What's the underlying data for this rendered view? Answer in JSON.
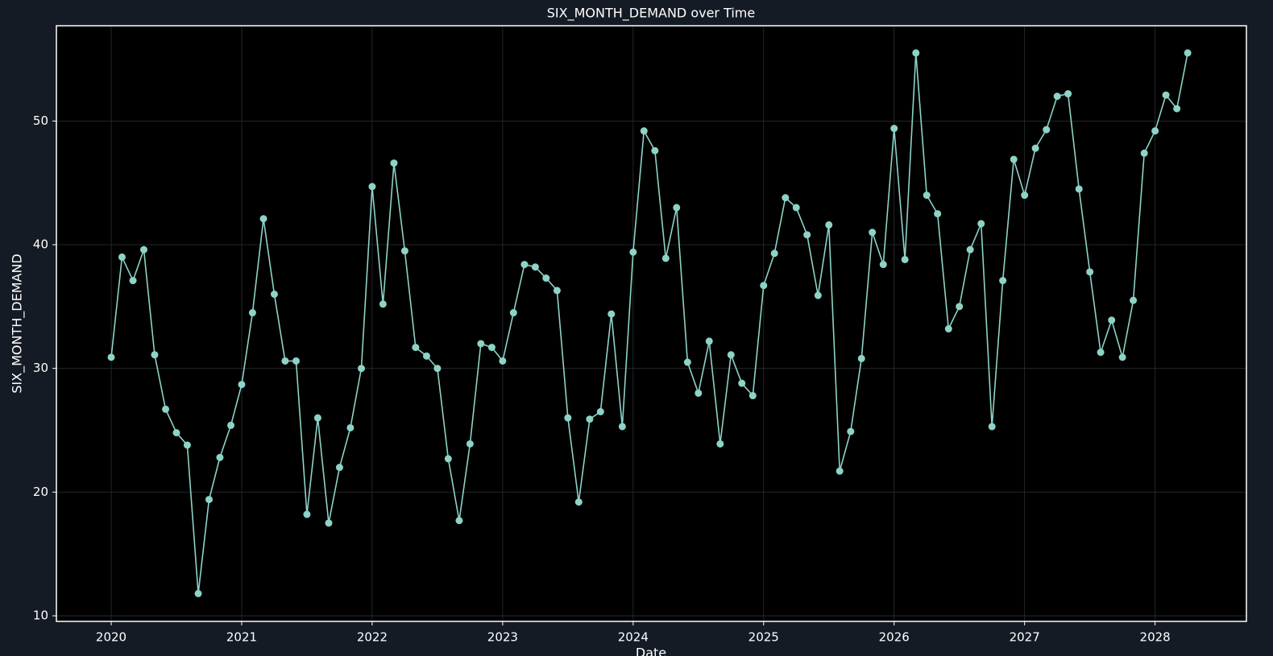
{
  "chart_data": {
    "type": "line",
    "title": "SIX_MONTH_DEMAND over Time",
    "xlabel": "Date",
    "ylabel": "SIX_MONTH_DEMAND",
    "color": "#8dd3c7",
    "grid": true,
    "marker": true,
    "xlim": [
      2019.58,
      2028.7
    ],
    "xticks": [
      2020,
      2021,
      2022,
      2023,
      2024,
      2025,
      2026,
      2027,
      2028
    ],
    "ylim": [
      9.55,
      57.7
    ],
    "yticks": [
      10,
      20,
      30,
      40,
      50
    ],
    "x": [
      2020,
      2020.083,
      2020.167,
      2020.25,
      2020.333,
      2020.417,
      2020.5,
      2020.583,
      2020.667,
      2020.75,
      2020.833,
      2020.917,
      2021,
      2021.083,
      2021.167,
      2021.25,
      2021.333,
      2021.417,
      2021.5,
      2021.583,
      2021.667,
      2021.75,
      2021.833,
      2021.917,
      2022,
      2022.083,
      2022.167,
      2022.25,
      2022.333,
      2022.417,
      2022.5,
      2022.583,
      2022.667,
      2022.75,
      2022.833,
      2022.917,
      2023,
      2023.083,
      2023.167,
      2023.25,
      2023.333,
      2023.417,
      2023.5,
      2023.583,
      2023.667,
      2023.75,
      2023.833,
      2023.917,
      2024,
      2024.083,
      2024.167,
      2024.25,
      2024.333,
      2024.417,
      2024.5,
      2024.583,
      2024.667,
      2024.75,
      2024.833,
      2024.917,
      2025,
      2025.083,
      2025.167,
      2025.25,
      2025.333,
      2025.417,
      2025.5,
      2025.583,
      2025.667,
      2025.75,
      2025.833,
      2025.917,
      2026,
      2026.083,
      2026.167,
      2026.25,
      2026.333,
      2026.417,
      2026.5,
      2026.583,
      2026.667,
      2026.75,
      2026.833,
      2026.917,
      2027,
      2027.083,
      2027.167,
      2027.25,
      2027.333,
      2027.417,
      2027.5,
      2027.583,
      2027.667,
      2027.75,
      2027.833,
      2027.917,
      2028,
      2028.083,
      2028.167,
      2028.25
    ],
    "values": [
      30.9,
      39.0,
      37.1,
      39.6,
      31.1,
      26.7,
      24.8,
      23.8,
      11.8,
      19.4,
      22.8,
      25.4,
      28.7,
      34.5,
      42.1,
      36.0,
      30.6,
      30.6,
      18.2,
      26.0,
      17.5,
      22.0,
      25.2,
      30.0,
      44.7,
      35.2,
      46.6,
      39.5,
      31.7,
      31.0,
      30.0,
      22.7,
      17.7,
      23.9,
      32.0,
      31.7,
      30.6,
      34.5,
      38.4,
      38.2,
      37.3,
      36.3,
      26.0,
      19.2,
      25.9,
      26.5,
      34.4,
      25.3,
      39.4,
      49.2,
      47.6,
      38.9,
      43.0,
      30.5,
      28.0,
      32.2,
      23.9,
      31.1,
      28.8,
      27.8,
      36.7,
      39.3,
      43.8,
      43.0,
      40.8,
      35.9,
      41.6,
      21.7,
      24.9,
      30.8,
      41.0,
      38.4,
      49.4,
      38.8,
      55.5,
      44.0,
      42.5,
      33.2,
      35.0,
      39.6,
      41.7,
      25.3,
      37.1,
      46.9,
      44.0,
      47.8,
      49.3,
      52.0,
      52.2,
      44.5,
      37.8,
      31.3,
      33.9,
      30.9,
      35.5,
      47.4,
      49.2,
      52.1,
      51.0,
      55.5
    ]
  }
}
